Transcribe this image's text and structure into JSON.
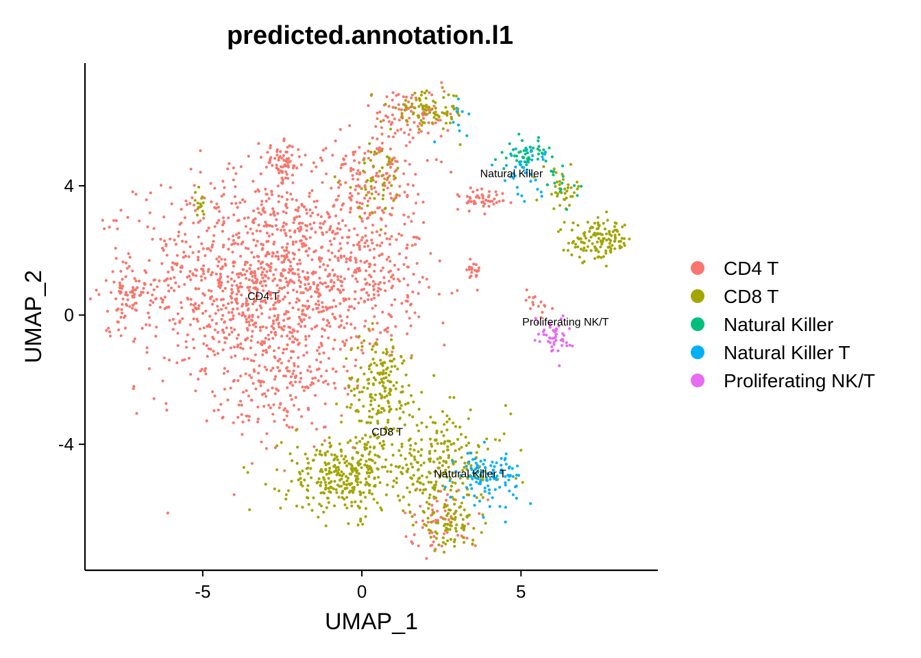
{
  "chart_data": {
    "type": "scatter",
    "title": "predicted.annotation.l1",
    "xlabel": "UMAP_1",
    "ylabel": "UMAP_2",
    "xlim": [
      -8.7,
      9.3
    ],
    "ylim": [
      -7.9,
      7.8
    ],
    "x_ticks": [
      -5,
      0,
      5
    ],
    "y_ticks": [
      -4,
      0,
      4
    ],
    "x_tick_labels": [
      "-5",
      "0",
      "5"
    ],
    "y_tick_labels": [
      "-4",
      "0",
      "4"
    ],
    "grid": false,
    "legend_position": "right",
    "series": [
      {
        "name": "CD4 T",
        "color": "#F8766D"
      },
      {
        "name": "CD8 T",
        "color": "#A3A500"
      },
      {
        "name": "Natural Killer",
        "color": "#00BF7D"
      },
      {
        "name": "Natural Killer T",
        "color": "#00B0F6"
      },
      {
        "name": "Proliferating NK/T",
        "color": "#E76BF3"
      }
    ],
    "clusters": [
      {
        "series": 0,
        "cx": -3.0,
        "cy": 1.0,
        "sx": 2.0,
        "sy": 1.7,
        "n": 1300
      },
      {
        "series": 0,
        "cx": -7.4,
        "cy": 0.7,
        "sx": 0.3,
        "sy": 0.5,
        "n": 60
      },
      {
        "series": 0,
        "cx": -2.5,
        "cy": 4.7,
        "sx": 0.3,
        "sy": 0.3,
        "n": 70
      },
      {
        "series": 0,
        "cx": 0.5,
        "cy": 4.5,
        "sx": 0.8,
        "sy": 0.9,
        "n": 130
      },
      {
        "series": 0,
        "cx": 1.6,
        "cy": 6.2,
        "sx": 0.6,
        "sy": 0.4,
        "n": 80
      },
      {
        "series": 0,
        "cx": 0.4,
        "cy": 1.7,
        "sx": 0.8,
        "sy": 1.2,
        "n": 170
      },
      {
        "series": 0,
        "cx": 3.8,
        "cy": 3.6,
        "sx": 0.4,
        "sy": 0.2,
        "n": 50
      },
      {
        "series": 0,
        "cx": 3.5,
        "cy": 1.3,
        "sx": 0.1,
        "sy": 0.2,
        "n": 20
      },
      {
        "series": 0,
        "cx": -2.5,
        "cy": -2.5,
        "sx": 0.8,
        "sy": 0.8,
        "n": 110
      },
      {
        "series": 0,
        "cx": 2.5,
        "cy": -6.3,
        "sx": 0.6,
        "sy": 0.5,
        "n": 60
      },
      {
        "series": 0,
        "cx": 5.4,
        "cy": 0.4,
        "sx": 0.3,
        "sy": 0.3,
        "n": 15
      },
      {
        "series": 1,
        "cx": 0.6,
        "cy": -2.4,
        "sx": 0.6,
        "sy": 0.9,
        "n": 200
      },
      {
        "series": 1,
        "cx": -0.5,
        "cy": -5.0,
        "sx": 1.0,
        "sy": 0.6,
        "n": 330
      },
      {
        "series": 1,
        "cx": 2.6,
        "cy": -4.6,
        "sx": 1.0,
        "sy": 0.8,
        "n": 200
      },
      {
        "series": 1,
        "cx": 2.7,
        "cy": -6.5,
        "sx": 0.5,
        "sy": 0.3,
        "n": 80
      },
      {
        "series": 1,
        "cx": 2.1,
        "cy": 6.3,
        "sx": 0.6,
        "sy": 0.3,
        "n": 90
      },
      {
        "series": 1,
        "cx": 7.5,
        "cy": 2.3,
        "sx": 0.5,
        "sy": 0.3,
        "n": 130
      },
      {
        "series": 1,
        "cx": 6.3,
        "cy": 3.9,
        "sx": 0.3,
        "sy": 0.3,
        "n": 40
      },
      {
        "series": 1,
        "cx": 0.4,
        "cy": 4.2,
        "sx": 0.5,
        "sy": 0.6,
        "n": 50
      },
      {
        "series": 1,
        "cx": -5.1,
        "cy": 3.4,
        "sx": 0.1,
        "sy": 0.2,
        "n": 15
      },
      {
        "series": 2,
        "cx": 5.2,
        "cy": 5.0,
        "sx": 0.3,
        "sy": 0.2,
        "n": 50
      },
      {
        "series": 2,
        "cx": 6.2,
        "cy": 4.1,
        "sx": 0.3,
        "sy": 0.3,
        "n": 15
      },
      {
        "series": 3,
        "cx": 4.0,
        "cy": -5.0,
        "sx": 0.5,
        "sy": 0.4,
        "n": 110
      },
      {
        "series": 3,
        "cx": 5.1,
        "cy": 4.5,
        "sx": 0.4,
        "sy": 0.4,
        "n": 35
      },
      {
        "series": 3,
        "cx": 3.0,
        "cy": 6.1,
        "sx": 0.3,
        "sy": 0.3,
        "n": 10
      },
      {
        "series": 4,
        "cx": 6.0,
        "cy": -0.6,
        "sx": 0.3,
        "sy": 0.3,
        "n": 50
      }
    ],
    "annotations": [
      {
        "text": "CD4 T",
        "x": -3.1,
        "y": 0.6
      },
      {
        "text": "CD8 T",
        "x": 0.8,
        "y": -3.6
      },
      {
        "text": "Natural Killer",
        "x": 4.7,
        "y": 4.4
      },
      {
        "text": "Natural Killer T",
        "x": 3.4,
        "y": -4.9
      },
      {
        "text": "Proliferating NK/T",
        "x": 6.4,
        "y": -0.2
      }
    ]
  }
}
